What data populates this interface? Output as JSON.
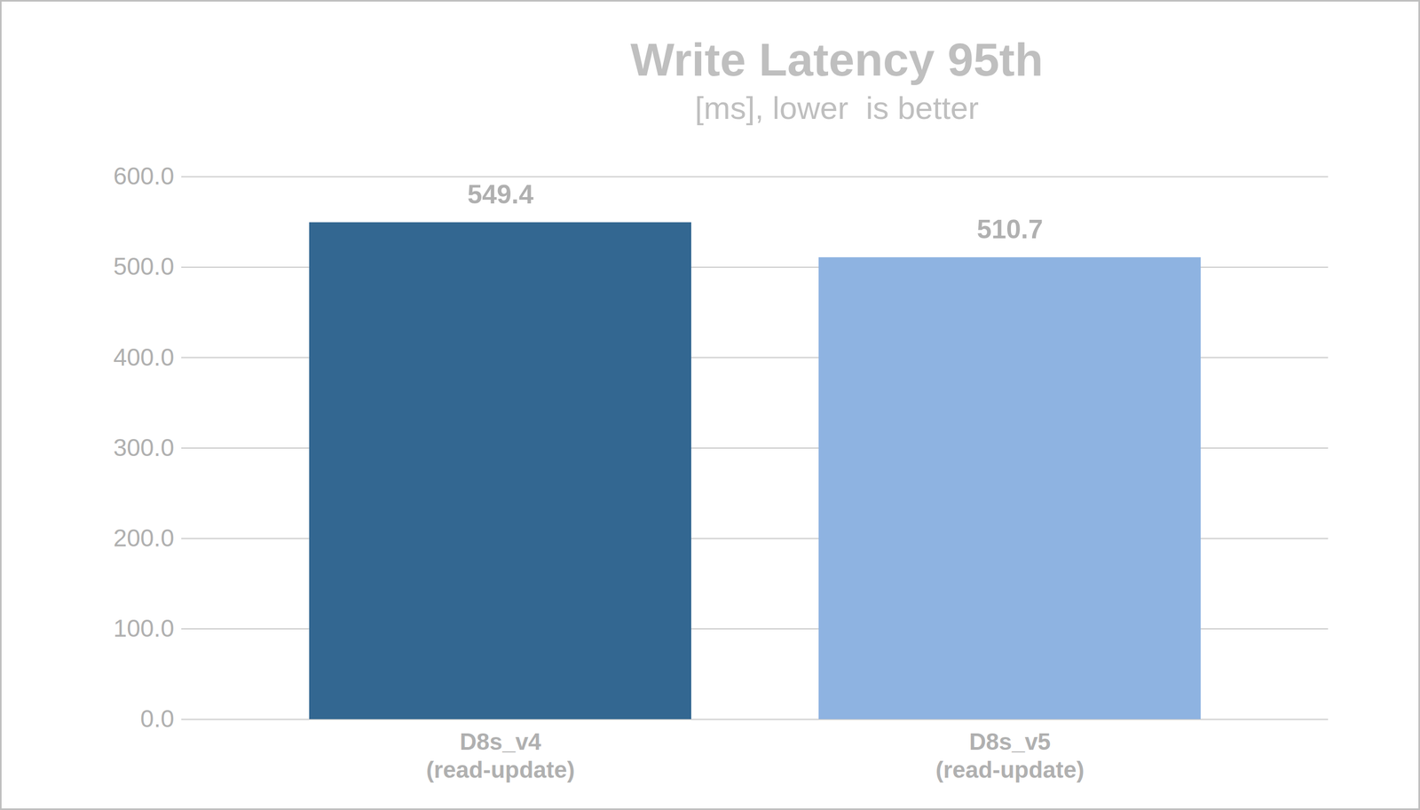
{
  "chart_data": {
    "type": "bar",
    "title": "Write Latency 95th",
    "subtitle": "[ms], lower  is better",
    "categories": [
      "D8s_v4\n(read-update)",
      "D8s_v5\n(read-update)"
    ],
    "values": [
      549.4,
      510.7
    ],
    "colors": [
      "#336791",
      "#8eb3e1"
    ],
    "ylim": [
      0,
      600
    ],
    "yticks": [
      {
        "value": 0,
        "label": "0.0"
      },
      {
        "value": 100,
        "label": "100.0"
      },
      {
        "value": 200,
        "label": "200.0"
      },
      {
        "value": 300,
        "label": "300.0"
      },
      {
        "value": 400,
        "label": "400.0"
      },
      {
        "value": 500,
        "label": "500.0"
      },
      {
        "value": 600,
        "label": "600.0"
      }
    ],
    "grid": true,
    "data_labels": true
  }
}
